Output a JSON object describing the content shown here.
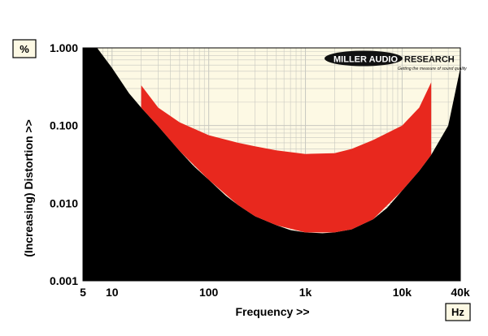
{
  "chart_data": {
    "type": "area",
    "xlabel": "Frequency >>",
    "ylabel": "(Increasing) Distortion >>",
    "x_unit": "Hz",
    "y_unit": "%",
    "x_scale": "log",
    "y_scale": "log",
    "xlim": [
      5,
      40000
    ],
    "ylim": [
      0.001,
      1.0
    ],
    "x_ticks": [
      {
        "value": 5,
        "label": "5"
      },
      {
        "value": 10,
        "label": "10"
      },
      {
        "value": 100,
        "label": "100"
      },
      {
        "value": 1000,
        "label": "1k"
      },
      {
        "value": 10000,
        "label": "10k"
      },
      {
        "value": 40000,
        "label": "40k"
      }
    ],
    "y_ticks": [
      {
        "value": 1.0,
        "label": "1.000"
      },
      {
        "value": 0.1,
        "label": "0.100"
      },
      {
        "value": 0.01,
        "label": "0.010"
      },
      {
        "value": 0.001,
        "label": "0.001"
      }
    ],
    "grid": true,
    "colors": {
      "plot_background": "#fdf9e4",
      "threshold_fill": "#000000",
      "band_fill": "#e8281e",
      "grid": "#c8c8c0"
    },
    "series": [
      {
        "role": "threshold",
        "x": [
          5,
          7,
          10,
          15,
          20,
          30,
          50,
          70,
          100,
          150,
          200,
          300,
          500,
          700,
          1000,
          1500,
          2000,
          3000,
          5000,
          7000,
          10000,
          15000,
          20000,
          30000,
          40000
        ],
        "y": [
          1.0,
          1.0,
          0.55,
          0.26,
          0.17,
          0.098,
          0.047,
          0.03,
          0.02,
          0.0125,
          0.0095,
          0.0068,
          0.0052,
          0.0045,
          0.0042,
          0.0041,
          0.0042,
          0.0046,
          0.0062,
          0.0087,
          0.0145,
          0.026,
          0.042,
          0.1,
          0.55
        ]
      },
      {
        "role": "band_upper",
        "x": [
          20,
          30,
          50,
          100,
          200,
          300,
          500,
          1000,
          2000,
          3000,
          5000,
          10000,
          15000,
          20000
        ],
        "y": [
          0.33,
          0.17,
          0.11,
          0.075,
          0.06,
          0.054,
          0.048,
          0.043,
          0.044,
          0.05,
          0.065,
          0.1,
          0.17,
          0.36
        ]
      },
      {
        "role": "band_lower",
        "x": [
          20,
          30,
          50,
          100,
          200,
          300,
          500,
          1000,
          2000,
          3000,
          5000,
          10000,
          15000,
          20000
        ],
        "y": [
          0.17,
          0.098,
          0.047,
          0.02,
          0.0095,
          0.0068,
          0.0052,
          0.0042,
          0.0042,
          0.0046,
          0.0062,
          0.0145,
          0.026,
          0.042
        ]
      }
    ]
  },
  "logo": {
    "brand_left": "MILLER AUDIO",
    "brand_right": "RESEARCH",
    "tagline": "Getting the measure of sound quality"
  }
}
